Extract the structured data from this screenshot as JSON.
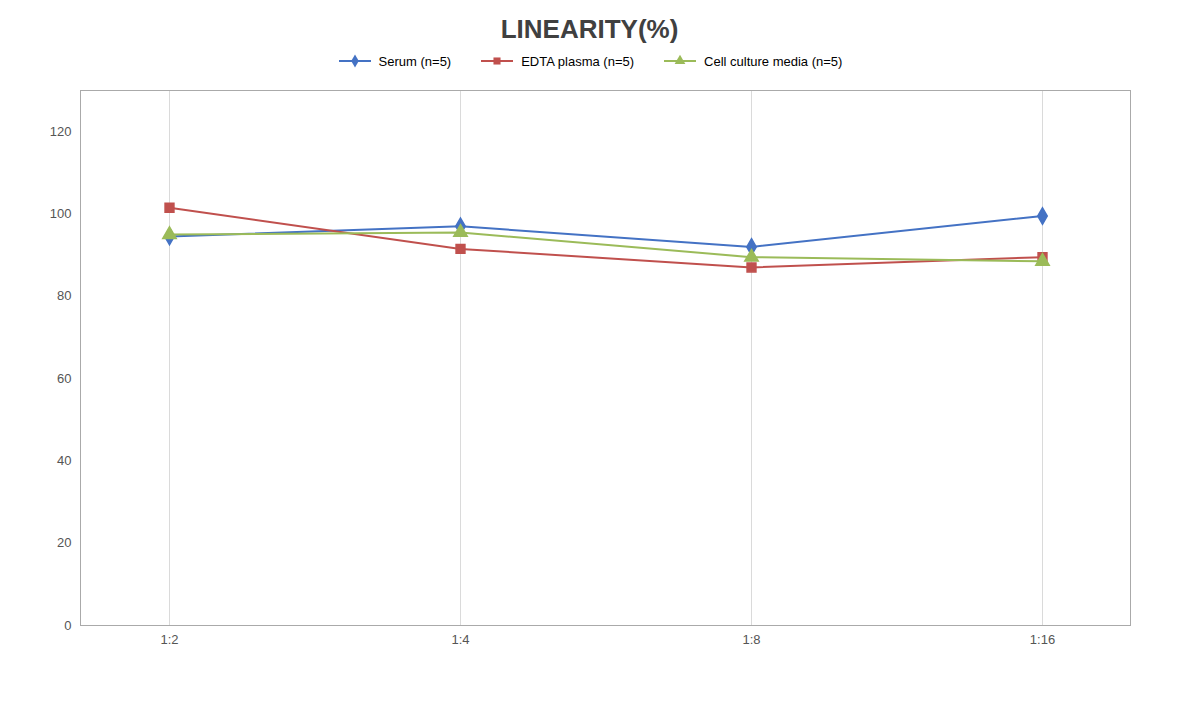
{
  "chart_data": {
    "type": "line",
    "title": "LINEARITY(%)",
    "categories": [
      "1:2",
      "1:4",
      "1:8",
      "1:16"
    ],
    "series": [
      {
        "name": "Serum (n=5)",
        "color": "#4472C4",
        "marker": "diamond",
        "values": [
          94.5,
          97.0,
          92.0,
          99.5
        ]
      },
      {
        "name": "EDTA plasma (n=5)",
        "color": "#C0504D",
        "marker": "square",
        "values": [
          101.5,
          91.5,
          87.0,
          89.5
        ]
      },
      {
        "name": "Cell culture media (n=5)",
        "color": "#9BBB59",
        "marker": "triangle",
        "values": [
          95.0,
          95.5,
          89.5,
          88.5
        ]
      }
    ],
    "ylim": [
      0,
      130
    ],
    "yticks": [
      0,
      20,
      40,
      60,
      80,
      100,
      120
    ],
    "grid": "x",
    "legend": "top"
  }
}
